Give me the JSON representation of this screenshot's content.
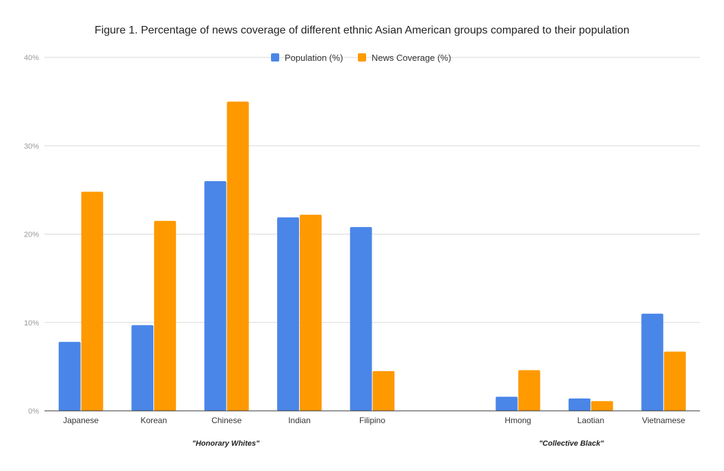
{
  "chart_data": {
    "type": "bar",
    "title": "Figure 1. Percentage of news coverage of different ethnic Asian American groups compared to their population",
    "xlabel": "",
    "ylabel": "",
    "ylim": [
      0,
      40
    ],
    "yticks": [
      "0%",
      "10%",
      "20%",
      "30%",
      "40%"
    ],
    "grid": true,
    "legend_position": "top",
    "categories": [
      "Japanese",
      "Korean",
      "Chinese",
      "Indian",
      "Filipino",
      "",
      "Hmong",
      "Laotian",
      "Vietnamese"
    ],
    "series": [
      {
        "name": "Population (%)",
        "color": "#4a86e8",
        "values": [
          7.8,
          9.7,
          26.0,
          21.9,
          20.8,
          null,
          1.6,
          1.4,
          11.0
        ]
      },
      {
        "name": "News Coverage (%)",
        "color": "#ff9900",
        "values": [
          24.8,
          21.5,
          35.0,
          22.2,
          4.5,
          null,
          4.6,
          1.1,
          6.7
        ]
      }
    ],
    "group_labels": [
      "\"Honorary Whites\"",
      "\"Collective Black\""
    ]
  }
}
